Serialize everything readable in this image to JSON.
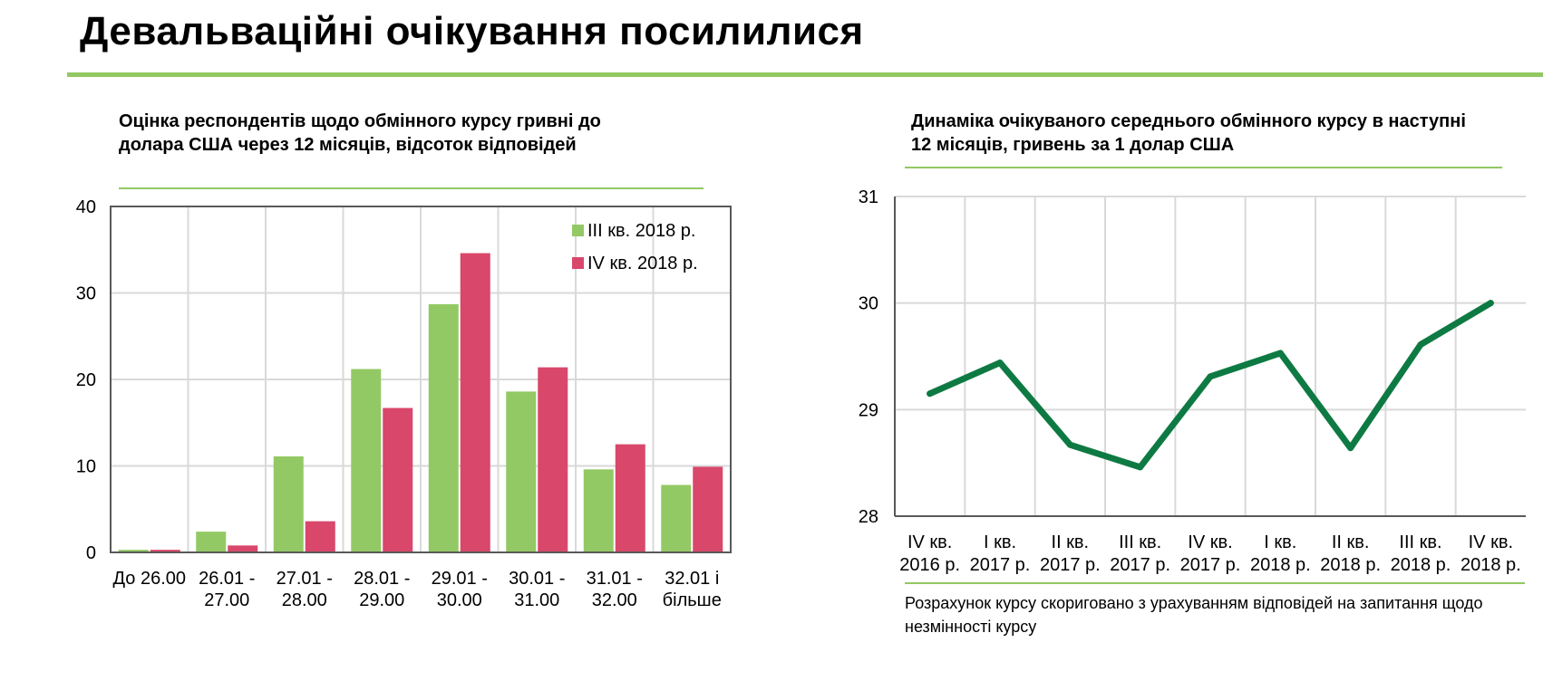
{
  "header": {
    "title": "Девальваційні очікування посилилися"
  },
  "colors": {
    "accent": "#92c862",
    "series_q3": "#93c964",
    "series_q4": "#d9476a",
    "line": "#0e7a43",
    "grid": "#d9d9d9",
    "axis": "#595959"
  },
  "note": "Розрахунок курсу скориговано з урахуванням відповідей на запитання щодо незмінності курсу",
  "chart_data": [
    {
      "type": "bar",
      "title": "Оцінка респондентів щодо обмінного  курсу гривні до долара США через 12 місяців, відсоток відповідей",
      "categories": [
        "До 26.00",
        "26.01 - 27.00",
        "27.01 - 28.00",
        "28.01 - 29.00",
        "29.01 - 30.00",
        "30.01 - 31.00",
        "31.01 - 32.00",
        "32.01 і більше"
      ],
      "category_lines": [
        [
          "До 26.00"
        ],
        [
          "26.01 -",
          "27.00"
        ],
        [
          "27.01 -",
          "28.00"
        ],
        [
          "28.01 -",
          "29.00"
        ],
        [
          "29.01 -",
          "30.00"
        ],
        [
          "30.01 -",
          "31.00"
        ],
        [
          "31.01 -",
          "32.00"
        ],
        [
          "32.01 і",
          "більше"
        ]
      ],
      "series": [
        {
          "name": "ІІІ кв. 2018 р.",
          "values": [
            0.3,
            2.4,
            11.1,
            21.2,
            28.7,
            18.6,
            9.6,
            7.8
          ]
        },
        {
          "name": "ІV кв. 2018 р.",
          "values": [
            0.3,
            0.8,
            3.6,
            16.7,
            34.6,
            21.4,
            12.5,
            9.9
          ]
        }
      ],
      "ylim": [
        0,
        40
      ],
      "yticks": [
        0,
        10,
        20,
        30,
        40
      ],
      "legend": "top-right",
      "grid": true
    },
    {
      "type": "line",
      "title": "Динаміка очікуваного середнього обмінного  курсу в наступні 12 місяців, гривень за 1 долар США",
      "categories": [
        "IV кв. 2016 р.",
        "I кв. 2017 р.",
        "II кв. 2017 р.",
        "III кв. 2017 р.",
        "IV кв. 2017 р.",
        "I кв. 2018 р.",
        "II кв. 2018 р.",
        "III кв. 2018 р.",
        "IV кв. 2018 р."
      ],
      "category_lines": [
        [
          "IV кв.",
          "2016 р."
        ],
        [
          "I кв.",
          "2017 р."
        ],
        [
          "II кв.",
          "2017 р."
        ],
        [
          "III кв.",
          "2017 р."
        ],
        [
          "IV кв.",
          "2017 р."
        ],
        [
          "I кв.",
          "2018 р."
        ],
        [
          "II кв.",
          "2018 р."
        ],
        [
          "III кв.",
          "2018 р."
        ],
        [
          "IV кв.",
          "2018 р."
        ]
      ],
      "values": [
        29.15,
        29.44,
        28.67,
        28.46,
        29.31,
        29.53,
        28.64,
        29.61,
        30.0
      ],
      "ylim": [
        28,
        31
      ],
      "yticks": [
        28,
        29,
        30,
        31
      ],
      "grid": true
    }
  ]
}
